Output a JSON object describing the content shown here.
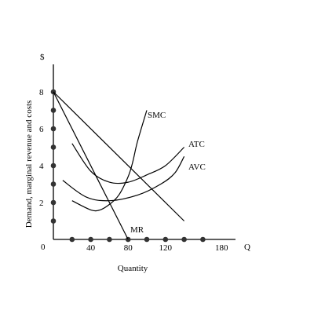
{
  "chart_data": {
    "type": "line",
    "title": "",
    "xlabel": "Quantity",
    "ylabel": "Demand, marginal revenue and costs",
    "x_axis_symbol": "Q",
    "y_axis_symbol": "$",
    "xlim": [
      0,
      200
    ],
    "ylim": [
      0,
      9
    ],
    "x_ticks": [
      {
        "value": 40,
        "label": "40"
      },
      {
        "value": 80,
        "label": "80"
      },
      {
        "value": 120,
        "label": "120"
      },
      {
        "value": 180,
        "label": "180"
      }
    ],
    "x_tick_dots": [
      20,
      40,
      60,
      80,
      100,
      120,
      140,
      160
    ],
    "y_ticks": [
      {
        "value": 2,
        "label": "2"
      },
      {
        "value": 4,
        "label": "4"
      },
      {
        "value": 6,
        "label": "6"
      },
      {
        "value": 8,
        "label": "8"
      }
    ],
    "y_tick_dots": [
      1,
      2,
      3,
      4,
      5,
      6,
      7,
      8
    ],
    "origin_label": "0",
    "series": [
      {
        "name": "SMC",
        "x": [
          20,
          40,
          50,
          60,
          70,
          80,
          85,
          90,
          100
        ],
        "y": [
          2.1,
          1.6,
          1.6,
          1.9,
          2.4,
          3.4,
          4.2,
          5.3,
          7.0
        ]
      },
      {
        "name": "ATC",
        "x": [
          20,
          40,
          60,
          80,
          100,
          120,
          140
        ],
        "y": [
          5.2,
          3.7,
          3.1,
          3.1,
          3.5,
          4.0,
          5.0
        ]
      },
      {
        "name": "AVC",
        "x": [
          10,
          35,
          60,
          90,
          115,
          130,
          140
        ],
        "y": [
          3.2,
          2.3,
          2.1,
          2.4,
          3.0,
          3.6,
          4.5
        ]
      },
      {
        "name": "MR",
        "x": [
          0,
          80
        ],
        "y": [
          8.0,
          0.0
        ]
      },
      {
        "name": "",
        "x": [
          0,
          140
        ],
        "y": [
          8.0,
          1.0
        ]
      }
    ],
    "grid": false,
    "legend": "none"
  }
}
